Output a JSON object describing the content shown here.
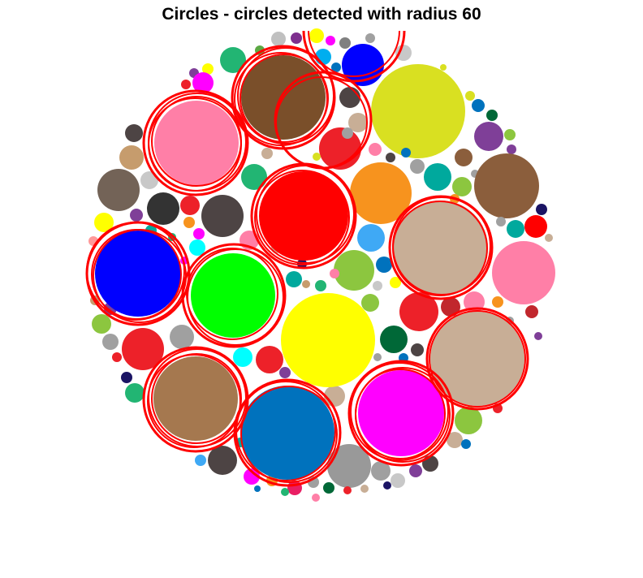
{
  "title": "Circles - circles detected with radius 60",
  "detection_color": "#ff0000",
  "circle_palette": {
    "blue": "#0000ff",
    "green": "#00ff00",
    "red": "#ff0000",
    "yellow": "#ffff00",
    "magenta": "#ff00ff",
    "pink": "#ff7fa7",
    "tan": "#c8ae96",
    "brown": "#7a4f2a",
    "light_brown": "#a5784f",
    "steel_blue": "#0072bd",
    "olive_yellow": "#d9e021",
    "orange": "#ff9020",
    "crimson": "#ed2129",
    "dark_gray": "#4d4444"
  }
}
